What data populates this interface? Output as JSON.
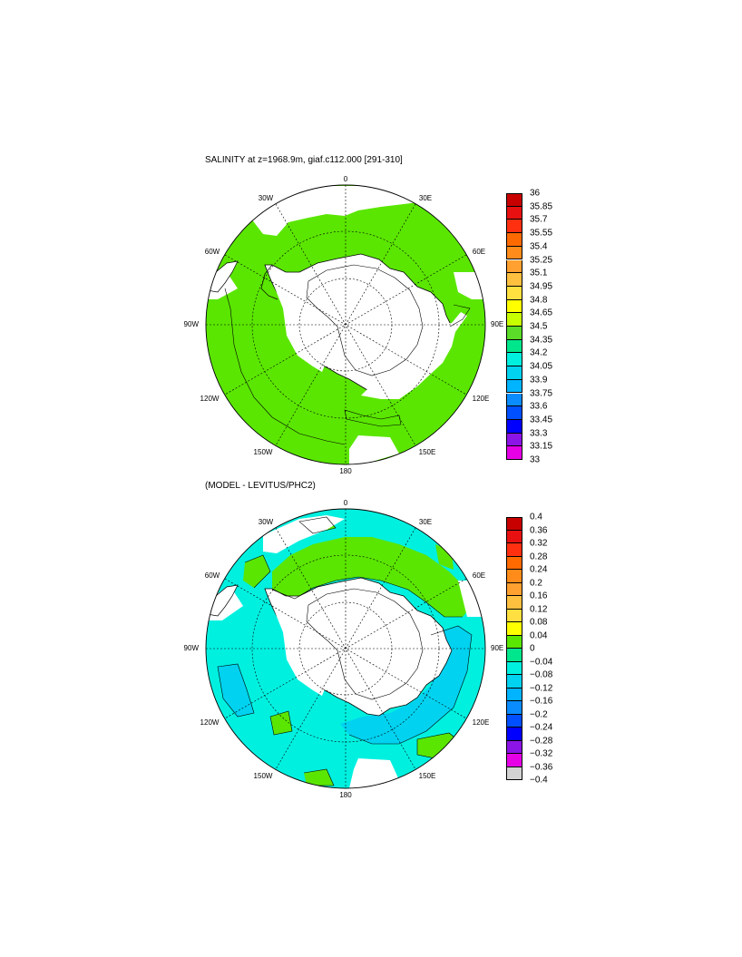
{
  "panel1": {
    "title": "SALINITY at z=1968.9m, giaf.c112.000 [291-310]",
    "lon_labels": {
      "deg0": "0",
      "deg30e": "30E",
      "deg60e": "60E",
      "deg90e": "90E",
      "deg120e": "120E",
      "deg150e": "150E",
      "deg180": "180",
      "deg150w": "150W",
      "deg120w": "120W",
      "deg90w": "90W",
      "deg60w": "60W",
      "deg30w": "30W"
    },
    "colorbar": {
      "ticks": [
        "36",
        "35.85",
        "35.7",
        "35.55",
        "35.4",
        "35.25",
        "35.1",
        "34.95",
        "34.8",
        "34.65",
        "34.5",
        "34.35",
        "34.2",
        "34.05",
        "33.9",
        "33.75",
        "33.6",
        "33.45",
        "33.3",
        "33.15",
        "33"
      ],
      "colors": [
        "#c80000",
        "#e81010",
        "#ff3010",
        "#ff6a00",
        "#ff8c1a",
        "#ffa030",
        "#ffc040",
        "#ffe040",
        "#ffff00",
        "#c8ff00",
        "#5adc28",
        "#00e68c",
        "#00f0e0",
        "#00d2f0",
        "#00b4ff",
        "#0a8cff",
        "#0050ff",
        "#0000ff",
        "#8c14e6",
        "#e600e6",
        "#d2d2d2",
        "#787878"
      ]
    },
    "field_color": "#5ae600",
    "ice_color": "#ffffff"
  },
  "panel2": {
    "title": "(MODEL - LEVITUS/PHC2)",
    "lon_labels": {
      "deg0": "0",
      "deg30e": "30E",
      "deg60e": "60E",
      "deg90e": "90E",
      "deg120e": "120E",
      "deg150e": "150E",
      "deg180": "180",
      "deg150w": "150W",
      "deg120w": "120W",
      "deg90w": "90W",
      "deg60w": "60W",
      "deg30w": "30W"
    },
    "colorbar": {
      "ticks": [
        "0.4",
        "0.36",
        "0.32",
        "0.28",
        "0.24",
        "0.2",
        "0.16",
        "0.12",
        "0.08",
        "0.04",
        "0",
        "−0.04",
        "−0.08",
        "−0.12",
        "−0.16",
        "−0.2",
        "−0.24",
        "−0.28",
        "−0.32",
        "−0.36",
        "−0.4"
      ],
      "colors": [
        "#c80000",
        "#e81010",
        "#ff3010",
        "#ff6a00",
        "#ff8c1a",
        "#ffa030",
        "#ffc040",
        "#ffe040",
        "#ffff00",
        "#5ae600",
        "#00e68c",
        "#00f0e0",
        "#00d2f0",
        "#00b4ff",
        "#0a8cff",
        "#0050ff",
        "#0000ff",
        "#8c14e6",
        "#e600e6",
        "#d2d2d2",
        "#787878"
      ]
    },
    "field_color": "#00f0e0",
    "positive_color": "#5ae600",
    "negative_color": "#00d2f0",
    "ice_color": "#ffffff"
  }
}
